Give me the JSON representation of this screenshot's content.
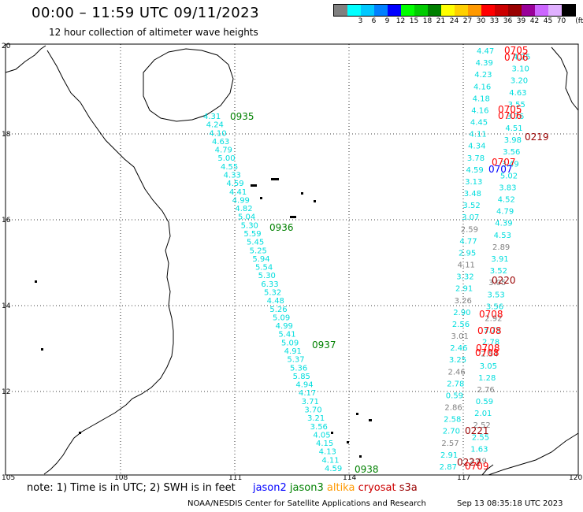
{
  "header": {
    "title": "00:00 – 11:59 UTC 09/11/2023",
    "subtitle": "12 hour collection of altimeter wave heights"
  },
  "colorbar": {
    "unit_label": "(ft)",
    "swatches": [
      {
        "color": "#808080",
        "label": ""
      },
      {
        "color": "#00ffff",
        "label": "3"
      },
      {
        "color": "#00c8ff",
        "label": "6"
      },
      {
        "color": "#0080ff",
        "label": "9"
      },
      {
        "color": "#0000ff",
        "label": "12"
      },
      {
        "color": "#00ff00",
        "label": "15"
      },
      {
        "color": "#00cc00",
        "label": "18"
      },
      {
        "color": "#008000",
        "label": "21"
      },
      {
        "color": "#ffff00",
        "label": "24"
      },
      {
        "color": "#ffd000",
        "label": "27"
      },
      {
        "color": "#ff9900",
        "label": "30"
      },
      {
        "color": "#ff0000",
        "label": "33"
      },
      {
        "color": "#cc0000",
        "label": "36"
      },
      {
        "color": "#990000",
        "label": "39"
      },
      {
        "color": "#990099",
        "label": "42"
      },
      {
        "color": "#cc66ff",
        "label": "45"
      },
      {
        "color": "#e0b0ff",
        "label": "70"
      },
      {
        "color": "#000000",
        "label": ""
      }
    ]
  },
  "axes": {
    "x_ticks": [
      "105",
      "108",
      "111",
      "114",
      "117",
      "120"
    ],
    "y_ticks": [
      "20",
      "18",
      "16",
      "14",
      "12",
      "10"
    ]
  },
  "tracks": {
    "track1": {
      "values": [
        "4.31",
        "4.24",
        "4.10",
        "4.63",
        "4.79",
        "5.00",
        "4.55",
        "4.33",
        "4.59",
        "4.41",
        "4.99",
        "4.82",
        "5.04",
        "5.30",
        "5.59",
        "5.45",
        "5.25",
        "5.94",
        "5.54",
        "5.30",
        "6.33",
        "5.32",
        "4.48",
        "5.26",
        "5.09",
        "4.99",
        "5.41",
        "5.09",
        "4.91",
        "5.37",
        "5.36",
        "5.85",
        "4.94",
        "4.17",
        "3.71",
        "3.70",
        "3.21",
        "3.56",
        "4.05",
        "4.15",
        "4.13",
        "4.11",
        "4.59"
      ],
      "times": [
        "0935",
        "0936",
        "0937",
        "0938"
      ]
    },
    "track2": {
      "values": [
        "4.47",
        "4.25",
        "4.39",
        "3.10",
        "4.23",
        "3.20",
        "4.16",
        "4.63",
        "4.18",
        "3.55",
        "4.16",
        "3.76",
        "4.45",
        "4.51",
        "4.11",
        "3.98",
        "4.34",
        "3.56",
        "3.78",
        "3.49",
        "4.59",
        "5.02",
        "3.13",
        "3.83",
        "3.48",
        "4.52",
        "3.52",
        "4.79",
        "3.07",
        "4.39",
        "2.59",
        "4.53",
        "4.77",
        "2.89",
        "2.95",
        "3.91",
        "4.11",
        "3.52",
        "3.32",
        "3.05",
        "2.91",
        "3.53",
        "3.26",
        "3.56",
        "2.90",
        "2.92",
        "2.56",
        "3.75",
        "3.01",
        "2.78",
        "2.46",
        "2.54",
        "3.25",
        "3.05",
        "2.46",
        "1.28",
        "2.78",
        "2.76",
        "0.59",
        "0.59",
        "2.86",
        "2.01",
        "2.58",
        "2.52",
        "2.70",
        "2.55",
        "2.57",
        "1.63",
        "2.91",
        "2.49",
        "2.87"
      ],
      "times_red": [
        "0705",
        "0706",
        "0705",
        "0706",
        "0707",
        "0708",
        "0708",
        "0708",
        "0708",
        "0709"
      ],
      "times_darkred": [
        "0219",
        "0220",
        "0221",
        "0222"
      ],
      "time_mixed": "0707"
    }
  },
  "note": {
    "prefix": "note:  1) Time is in UTC;  2) SWH is in feet",
    "sat1": "jason2",
    "sat2": "jason3",
    "sat3": "altika",
    "sat4": "cryosat",
    "sat5": "s3a",
    "sat_colors": {
      "jason2": "#0000ff",
      "jason3": "#008000",
      "altika": "#ff9900",
      "cryosat": "#cc0000",
      "s3a": "#990000"
    }
  },
  "footer": {
    "org": "NOAA/NESDIS Center for Satellite Applications and Research",
    "stamp": "Sep 13 08:35:18 UTC 2023"
  }
}
